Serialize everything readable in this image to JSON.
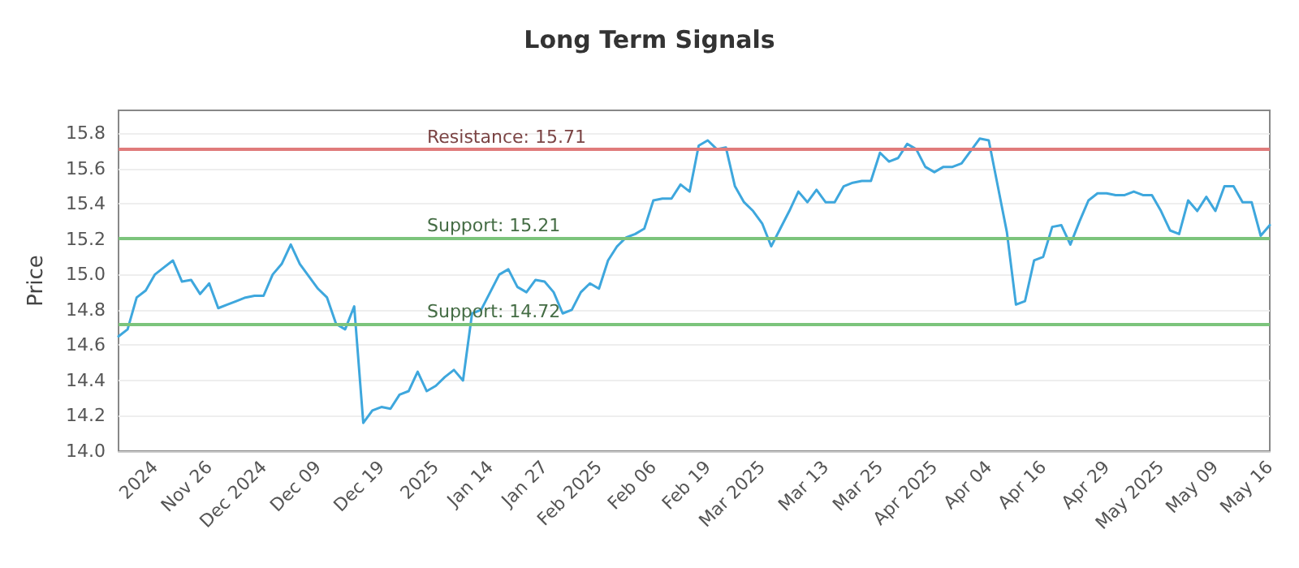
{
  "chart_data": {
    "type": "line",
    "title": "Long Term Signals",
    "ylabel": "Price",
    "categories": [
      null,
      null,
      null,
      null,
      "2024",
      null,
      null,
      null,
      null,
      null,
      "Nov 26",
      null,
      null,
      null,
      null,
      null,
      "Dec 2024",
      null,
      null,
      null,
      null,
      null,
      "Dec 09",
      null,
      null,
      null,
      null,
      null,
      null,
      "Dec 19",
      null,
      null,
      null,
      null,
      null,
      "2025",
      null,
      null,
      null,
      null,
      null,
      "Jan 14",
      null,
      null,
      null,
      null,
      null,
      "Jan 27",
      null,
      null,
      null,
      null,
      null,
      "Feb 2025",
      null,
      null,
      null,
      null,
      null,
      "Feb 06",
      null,
      null,
      null,
      null,
      null,
      "Feb 19",
      null,
      null,
      null,
      null,
      null,
      "Mar 2025",
      null,
      null,
      null,
      null,
      null,
      null,
      "Mar 13",
      null,
      null,
      null,
      null,
      null,
      "Mar 25",
      null,
      null,
      null,
      null,
      null,
      "Apr 2025",
      null,
      null,
      null,
      null,
      null,
      "Apr 04",
      null,
      null,
      null,
      null,
      null,
      "Apr 16",
      null,
      null,
      null,
      null,
      null,
      null,
      "Apr 29",
      null,
      null,
      null,
      null,
      null,
      "May 2025",
      null,
      null,
      null,
      null,
      null,
      "May 09",
      null,
      null,
      null,
      null,
      null,
      "May 16"
    ],
    "series": [
      {
        "color": "#3ea7dd",
        "values": [
          14.65,
          14.69,
          14.87,
          14.91,
          15.0,
          15.04,
          15.08,
          14.96,
          14.97,
          14.89,
          14.95,
          14.81,
          14.83,
          14.85,
          14.87,
          14.88,
          14.88,
          15.0,
          15.06,
          15.17,
          15.06,
          14.99,
          14.92,
          14.87,
          14.72,
          14.69,
          14.82,
          14.16,
          14.23,
          14.25,
          14.24,
          14.32,
          14.34,
          14.45,
          14.34,
          14.37,
          14.42,
          14.46,
          14.4,
          14.78,
          14.8,
          14.9,
          15.0,
          15.03,
          14.93,
          14.9,
          14.97,
          14.96,
          14.9,
          14.78,
          14.8,
          14.9,
          14.95,
          14.92,
          15.08,
          15.16,
          15.21,
          15.23,
          15.26,
          15.42,
          15.43,
          15.43,
          15.51,
          15.47,
          15.73,
          15.76,
          15.71,
          15.72,
          15.5,
          15.41,
          15.36,
          15.29,
          15.16,
          15.26,
          15.36,
          15.47,
          15.41,
          15.48,
          15.41,
          15.41,
          15.5,
          15.52,
          15.53,
          15.53,
          15.69,
          15.64,
          15.66,
          15.74,
          15.71,
          15.61,
          15.58,
          15.61,
          15.61,
          15.63,
          15.7,
          15.77,
          15.76,
          15.5,
          15.24,
          14.83,
          14.85,
          15.08,
          15.1,
          15.27,
          15.28,
          15.17,
          15.3,
          15.42,
          15.46,
          15.46,
          15.45,
          15.45,
          15.47,
          15.45,
          15.45,
          15.36,
          15.25,
          15.23,
          15.42,
          15.36,
          15.44,
          15.36,
          15.5,
          15.5,
          15.41,
          15.41,
          15.22,
          15.28
        ]
      }
    ],
    "ylim": [
      14.0,
      15.93
    ],
    "yticks": [
      {
        "value": 14,
        "label": "14.0"
      },
      {
        "value": 14.2,
        "label": "14.2"
      },
      {
        "value": 14.4,
        "label": "14.4"
      },
      {
        "value": 14.6,
        "label": "14.6"
      },
      {
        "value": 14.8,
        "label": "14.8"
      },
      {
        "value": 15,
        "label": "15.0"
      },
      {
        "value": 15.2,
        "label": "15.2"
      },
      {
        "value": 15.4,
        "label": "15.4"
      },
      {
        "value": 15.6,
        "label": "15.6"
      },
      {
        "value": 15.8,
        "label": "15.8"
      }
    ],
    "ref_lines": [
      {
        "axis": "y",
        "value": 15.71,
        "label": "Resistance: 15.71",
        "color": "#e07b7b"
      },
      {
        "axis": "y",
        "value": 15.21,
        "label": "Support: 15.21",
        "color": "#7cc47c"
      },
      {
        "axis": "y",
        "value": 14.72,
        "label": "Support: 14.72",
        "color": "#7cc47c"
      }
    ],
    "grid": "y",
    "marker": "none",
    "line_style": "solid"
  }
}
